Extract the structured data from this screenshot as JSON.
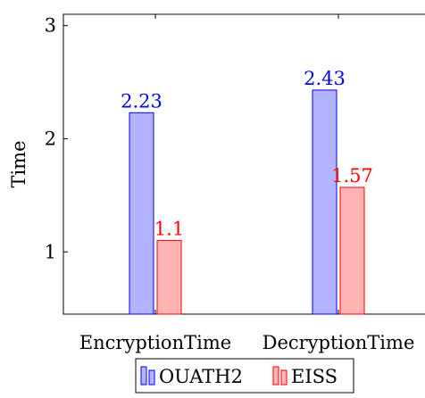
{
  "chart_data": {
    "type": "bar",
    "title": "",
    "xlabel": "",
    "ylabel": "Time",
    "categories": [
      "EncryptionTime",
      "DecryptionTime"
    ],
    "series": [
      {
        "name": "OUATH2",
        "values": [
          2.23,
          2.43
        ],
        "color": "#0000ff",
        "fill": "#b3b3ff"
      },
      {
        "name": "EISS",
        "values": [
          1.1,
          1.57
        ],
        "color": "#ff0000",
        "fill": "#ffb3b3"
      }
    ],
    "value_labels": [
      [
        "2.23",
        "2.43"
      ],
      [
        "1.1",
        "1.57"
      ]
    ],
    "ylim": [
      0.45,
      3.1
    ],
    "yticks": [
      1,
      2,
      3
    ],
    "ytick_labels": [
      "1",
      "2",
      "3"
    ],
    "grid": false,
    "legend_position": "bottom-center"
  }
}
